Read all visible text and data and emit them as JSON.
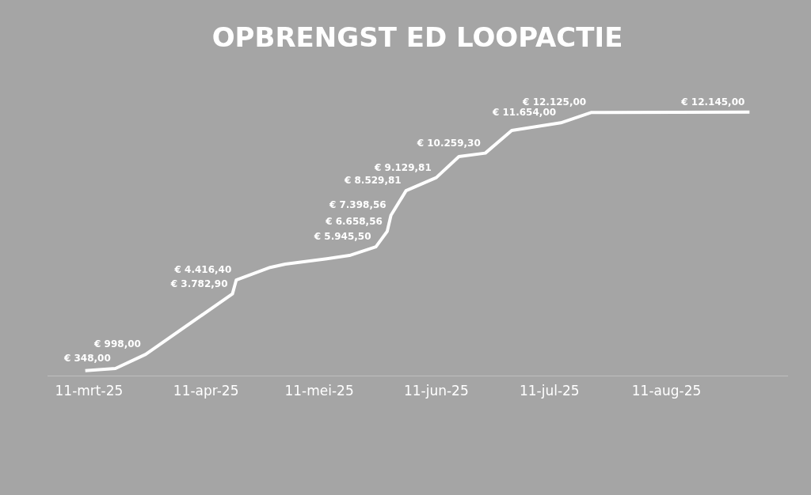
{
  "chart_data": {
    "type": "line",
    "title": "OPBRENGST ED LOOPACTIE",
    "x": [
      "2025-03-10",
      "2025-03-18",
      "2025-03-26",
      "2025-04-18",
      "2025-04-19",
      "2025-04-28",
      "2025-05-02",
      "2025-05-13",
      "2025-05-19",
      "2025-05-26",
      "2025-05-29",
      "2025-05-30",
      "2025-06-03",
      "2025-06-11",
      "2025-06-17",
      "2025-06-24",
      "2025-07-01",
      "2025-07-14",
      "2025-07-22",
      "2025-09-02"
    ],
    "series": [
      {
        "color": "#ffffff",
        "values": [
          250,
          348,
          998,
          3782.9,
          4416.4,
          5000,
          5150,
          5400,
          5550,
          5945.5,
          6658.56,
          7398.56,
          8529.81,
          9129.81,
          10100,
          10259.3,
          11300,
          11654,
          12125,
          12145
        ],
        "value_labels": [
          null,
          "€ 348,00",
          "€ 998,00",
          "€ 3.782,90",
          "€ 4.416,40",
          null,
          null,
          null,
          null,
          "€ 5.945,50",
          "€ 6.658,56",
          "€ 7.398,56",
          "€ 8.529,81",
          "€ 9.129,81",
          null,
          "€ 10.259,30",
          null,
          "€ 11.654,00",
          "€ 12.125,00",
          "€ 12.145,00"
        ]
      }
    ],
    "xlim": [
      "2025-02-28",
      "2025-09-12"
    ],
    "xticks": [
      {
        "value": "2025-03-11",
        "label": "11-mrt-25"
      },
      {
        "value": "2025-04-11",
        "label": "11-apr-25"
      },
      {
        "value": "2025-05-11",
        "label": "11-mei-25"
      },
      {
        "value": "2025-06-11",
        "label": "11-jun-25"
      },
      {
        "value": "2025-07-11",
        "label": "11-jul-25"
      },
      {
        "value": "2025-08-11",
        "label": "11-aug-25"
      }
    ],
    "tick_labels": "x",
    "grid": false,
    "legend": false,
    "marker": "none",
    "line_style": "solid"
  }
}
